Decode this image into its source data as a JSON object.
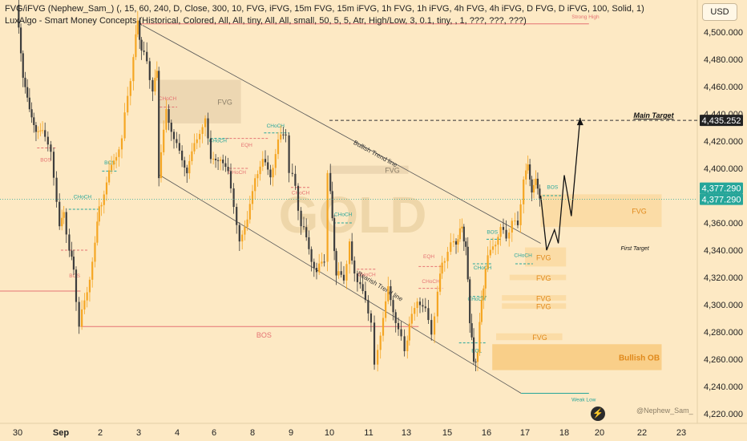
{
  "header": {
    "indicator1": "FVG/iFVG (Nephew_Sam_) (, 15, 60, 240, D, Close, 300, 10, FVG, iFVG, 15m FVG, 15m iFVG, 1h FVG, 1h iFVG, 4h FVG, 4h iFVG, D FVG, D iFVG, 100, Solid, 1)",
    "indicator2": "LuxAlgo - Smart Money Concepts (Historical, Colored, All, All, tiny, All, All, small, 50, 5, 5, Atr, High/Low, 3, 0.1, tiny, , 1, ???, ???, ???)",
    "currency_button": "USD"
  },
  "watermark": "GOLD",
  "credit": "@Nephew_Sam_",
  "colors": {
    "background": "#fde9c4",
    "candle_up": "#f5a623",
    "candle_down": "#3d3d3d",
    "bos_line": "#e57373",
    "choch_line": "#26a69a",
    "fvg_box": "#f9d79c",
    "ob_box": "#f7c675",
    "last_price": "#26a69a"
  },
  "chart_data": {
    "type": "candlestick",
    "symbol": "GOLD",
    "ylim": [
      4212,
      4514
    ],
    "y_ticks": [
      4220,
      4240,
      4260,
      4280,
      4300,
      4320,
      4340,
      4360,
      4380,
      4400,
      4420,
      4440,
      4460,
      4480,
      4500
    ],
    "y_tick_labels": [
      "4,220.000",
      "4,240.000",
      "4,260.000",
      "4,280.000",
      "4,300.000",
      "4,320.000",
      "4,340.000",
      "4,360.000",
      "4,380.000",
      "4,400.000",
      "4,420.000",
      "4,440.000",
      "4,460.000",
      "4,480.000",
      "4,500.000"
    ],
    "x_ticks": [
      {
        "label": "30",
        "t": 0
      },
      {
        "label": "Sep",
        "t": 1
      },
      {
        "label": "2",
        "t": 2
      },
      {
        "label": "3",
        "t": 3
      },
      {
        "label": "4",
        "t": 4
      },
      {
        "label": "6",
        "t": 5
      },
      {
        "label": "8",
        "t": 6
      },
      {
        "label": "9",
        "t": 7
      },
      {
        "label": "10",
        "t": 8
      },
      {
        "label": "11",
        "t": 9
      },
      {
        "label": "13",
        "t": 10
      },
      {
        "label": "15",
        "t": 11
      },
      {
        "label": "16",
        "t": 12
      },
      {
        "label": "17",
        "t": 13
      },
      {
        "label": "18",
        "t": 14
      },
      {
        "label": "20",
        "t": 15
      },
      {
        "label": "22",
        "t": 16
      },
      {
        "label": "23",
        "t": 17
      }
    ],
    "price_path": [
      [
        0.0,
        4520
      ],
      [
        0.15,
        4470
      ],
      [
        0.3,
        4440
      ],
      [
        0.45,
        4430
      ],
      [
        0.6,
        4425
      ],
      [
        0.8,
        4415
      ],
      [
        1.0,
        4355
      ],
      [
        1.1,
        4368
      ],
      [
        1.25,
        4340
      ],
      [
        1.35,
        4325
      ],
      [
        1.5,
        4285
      ],
      [
        1.7,
        4310
      ],
      [
        1.9,
        4345
      ],
      [
        2.0,
        4370
      ],
      [
        2.2,
        4390
      ],
      [
        2.45,
        4410
      ],
      [
        2.6,
        4425
      ],
      [
        2.75,
        4450
      ],
      [
        2.9,
        4485
      ],
      [
        3.0,
        4505
      ],
      [
        3.1,
        4490
      ],
      [
        3.25,
        4475
      ],
      [
        3.4,
        4460
      ],
      [
        3.5,
        4468
      ],
      [
        3.55,
        4395
      ],
      [
        3.75,
        4440
      ],
      [
        3.95,
        4425
      ],
      [
        4.1,
        4410
      ],
      [
        4.3,
        4400
      ],
      [
        4.5,
        4415
      ],
      [
        4.8,
        4440
      ],
      [
        4.95,
        4405
      ],
      [
        5.2,
        4410
      ],
      [
        5.4,
        4395
      ],
      [
        5.7,
        4350
      ],
      [
        5.9,
        4360
      ],
      [
        6.1,
        4395
      ],
      [
        6.3,
        4405
      ],
      [
        6.5,
        4395
      ],
      [
        6.7,
        4420
      ],
      [
        6.9,
        4425
      ],
      [
        7.0,
        4400
      ],
      [
        7.15,
        4385
      ],
      [
        7.3,
        4360
      ],
      [
        7.5,
        4340
      ],
      [
        7.7,
        4325
      ],
      [
        7.9,
        4330
      ],
      [
        8.0,
        4400
      ],
      [
        8.1,
        4360
      ],
      [
        8.2,
        4325
      ],
      [
        8.4,
        4315
      ],
      [
        8.55,
        4350
      ],
      [
        8.6,
        4330
      ],
      [
        8.75,
        4320
      ],
      [
        8.95,
        4300
      ],
      [
        9.1,
        4290
      ],
      [
        9.2,
        4255
      ],
      [
        9.35,
        4280
      ],
      [
        9.55,
        4310
      ],
      [
        9.75,
        4290
      ],
      [
        9.9,
        4275
      ],
      [
        10.0,
        4265
      ],
      [
        10.1,
        4285
      ],
      [
        10.3,
        4305
      ],
      [
        10.5,
        4295
      ],
      [
        10.65,
        4278
      ],
      [
        10.8,
        4310
      ],
      [
        10.9,
        4330
      ],
      [
        11.05,
        4340
      ],
      [
        11.2,
        4345
      ],
      [
        11.3,
        4350
      ],
      [
        11.4,
        4355
      ],
      [
        11.5,
        4345
      ],
      [
        11.55,
        4315
      ],
      [
        11.6,
        4290
      ],
      [
        11.7,
        4255
      ],
      [
        11.8,
        4268
      ],
      [
        11.9,
        4300
      ],
      [
        12.0,
        4330
      ],
      [
        12.2,
        4340
      ],
      [
        12.4,
        4360
      ],
      [
        12.55,
        4345
      ],
      [
        12.7,
        4365
      ],
      [
        12.85,
        4355
      ],
      [
        13.0,
        4395
      ],
      [
        13.1,
        4400
      ],
      [
        13.2,
        4385
      ],
      [
        13.3,
        4390
      ],
      [
        13.4,
        4380
      ]
    ],
    "projection": [
      [
        13.4,
        4380
      ],
      [
        13.55,
        4340
      ],
      [
        13.75,
        4355
      ],
      [
        13.85,
        4345
      ],
      [
        14.0,
        4395
      ],
      [
        14.2,
        4365
      ],
      [
        14.45,
        4437
      ]
    ],
    "last_price": 4377.29,
    "last_price_label": "4,377.290",
    "last_price_label2": "4,377.290",
    "main_target_price": 4435.252,
    "main_target_price_label": "4,435.252",
    "trendlines": [
      {
        "name": "Bullish Trend line",
        "from": [
          3.1,
          4505
        ],
        "to": [
          13.4,
          4345
        ],
        "label": "Bullish Trend line"
      },
      {
        "name": "Bearish Trend line",
        "from": [
          3.55,
          4395
        ],
        "to": [
          12.9,
          4235
        ],
        "label": "Bearish Trend line"
      }
    ],
    "boxes": [
      {
        "label": "FVG",
        "t0": 3.55,
        "t1": 5.7,
        "y0": 4433,
        "y1": 4465,
        "kind": "fvg"
      },
      {
        "label": "FVG",
        "t0": 8.0,
        "t1": 10.05,
        "y0": 4396,
        "y1": 4402,
        "kind": "fvg"
      },
      {
        "label": "FVG",
        "t0": 13.4,
        "t1": 16.5,
        "y0": 4357,
        "y1": 4381,
        "kind": "fvg"
      },
      {
        "label": "FVG",
        "t0": 13.0,
        "t1": 14.05,
        "y0": 4328,
        "y1": 4342,
        "kind": "fvg"
      },
      {
        "label": "FVG",
        "t0": 12.6,
        "t1": 14.05,
        "y0": 4318,
        "y1": 4322,
        "kind": "fvg"
      },
      {
        "label": "FVG",
        "t0": 12.4,
        "t1": 14.05,
        "y0": 4303,
        "y1": 4307,
        "kind": "fvg"
      },
      {
        "label": "FVG",
        "t0": 12.4,
        "t1": 14.05,
        "y0": 4297,
        "y1": 4301,
        "kind": "fvg"
      },
      {
        "label": "FVG",
        "t0": 12.25,
        "t1": 13.95,
        "y0": 4274,
        "y1": 4279,
        "kind": "fvg"
      },
      {
        "label": "Bullish OB",
        "t0": 12.15,
        "t1": 16.5,
        "y0": 4252,
        "y1": 4271,
        "kind": "ob"
      }
    ],
    "structure_labels": [
      {
        "text": "BOS",
        "t": 0.65,
        "y": 4405,
        "kind": "bos",
        "from": 0.45,
        "to": 0.9,
        "line_y": 4415
      },
      {
        "text": "BOS",
        "t": 1.35,
        "y": 4320,
        "kind": "bos",
        "from": 1.0,
        "to": 1.7,
        "line_y": 4340
      },
      {
        "text": "CHoCH",
        "t": 1.55,
        "y": 4378,
        "kind": "choch",
        "from": 1.2,
        "to": 1.95,
        "line_y": 4370
      },
      {
        "text": "BOS",
        "t": 2.25,
        "y": 4403,
        "kind": "choch",
        "from": 2.05,
        "to": 2.45,
        "line_y": 4398
      },
      {
        "text": "CHoCH",
        "t": 3.75,
        "y": 4450,
        "kind": "bos",
        "from": 3.55,
        "to": 4.0,
        "line_y": 4445
      },
      {
        "text": "CHoCH",
        "t": 5.1,
        "y": 4419,
        "kind": "choch",
        "from": 4.9,
        "to": 5.4,
        "line_y": 4422
      },
      {
        "text": "EQH",
        "t": 5.85,
        "y": 4416,
        "kind": "bos",
        "from": 5.3,
        "to": 6.4,
        "line_y": 4422
      },
      {
        "text": "CHoCH",
        "t": 5.6,
        "y": 4396,
        "kind": "bos",
        "from": 5.4,
        "to": 5.9,
        "line_y": 4400
      },
      {
        "text": "CHoCH",
        "t": 6.6,
        "y": 4430,
        "kind": "choch",
        "from": 6.3,
        "to": 6.95,
        "line_y": 4426
      },
      {
        "text": "CHoCH",
        "t": 7.25,
        "y": 4381,
        "kind": "bos",
        "from": 7.0,
        "to": 7.5,
        "line_y": 4386
      },
      {
        "text": "CHoCH",
        "t": 8.35,
        "y": 4365,
        "kind": "choch",
        "from": 8.1,
        "to": 8.6,
        "line_y": 4360
      },
      {
        "text": "CHoCH",
        "t": 8.95,
        "y": 4321,
        "kind": "bos",
        "from": 8.7,
        "to": 9.2,
        "line_y": 4326
      },
      {
        "text": "BOS",
        "t": 6.3,
        "y": 4276,
        "kind": "bos",
        "from": 1.5,
        "to": 10.3,
        "line_y": 4284
      },
      {
        "text": "EQH",
        "t": 10.55,
        "y": 4334,
        "kind": "bos",
        "from": 10.3,
        "to": 10.9,
        "line_y": 4328
      },
      {
        "text": "CHoCH",
        "t": 10.6,
        "y": 4316,
        "kind": "bos",
        "from": 10.3,
        "to": 10.9,
        "line_y": 4312
      },
      {
        "text": "CHoCH",
        "t": 11.75,
        "y": 4303,
        "kind": "choch",
        "from": 11.55,
        "to": 12.0,
        "line_y": 4306
      },
      {
        "text": "EQL",
        "t": 11.75,
        "y": 4265,
        "kind": "choch",
        "from": 11.3,
        "to": 12.0,
        "line_y": 4272
      },
      {
        "text": "CHoCH",
        "t": 11.9,
        "y": 4326,
        "kind": "choch",
        "from": 11.65,
        "to": 12.15,
        "line_y": 4330
      },
      {
        "text": "BOS",
        "t": 12.15,
        "y": 4352,
        "kind": "choch",
        "from": 12.0,
        "to": 12.4,
        "line_y": 4348
      },
      {
        "text": "CHoCH",
        "t": 12.95,
        "y": 4335,
        "kind": "choch",
        "from": 12.75,
        "to": 13.2,
        "line_y": 4330
      },
      {
        "text": "BOS",
        "t": 13.7,
        "y": 4385,
        "kind": "choch",
        "from": 13.45,
        "to": 13.95,
        "line_y": 4380
      },
      {
        "text": "Strong High",
        "t": 14.6,
        "y": 4510,
        "kind": "bos",
        "from": 3.0,
        "to": 14.7,
        "line_y": 4506
      },
      {
        "text": "Weak Low",
        "t": 14.55,
        "y": 4229,
        "kind": "choch",
        "from": 12.9,
        "to": 14.7,
        "line_y": 4235
      }
    ],
    "annotations": [
      {
        "text": "Main Target",
        "t": 15.8,
        "y": 4437
      },
      {
        "text": "First Target",
        "t": 15.5,
        "y": 4340
      }
    ]
  }
}
